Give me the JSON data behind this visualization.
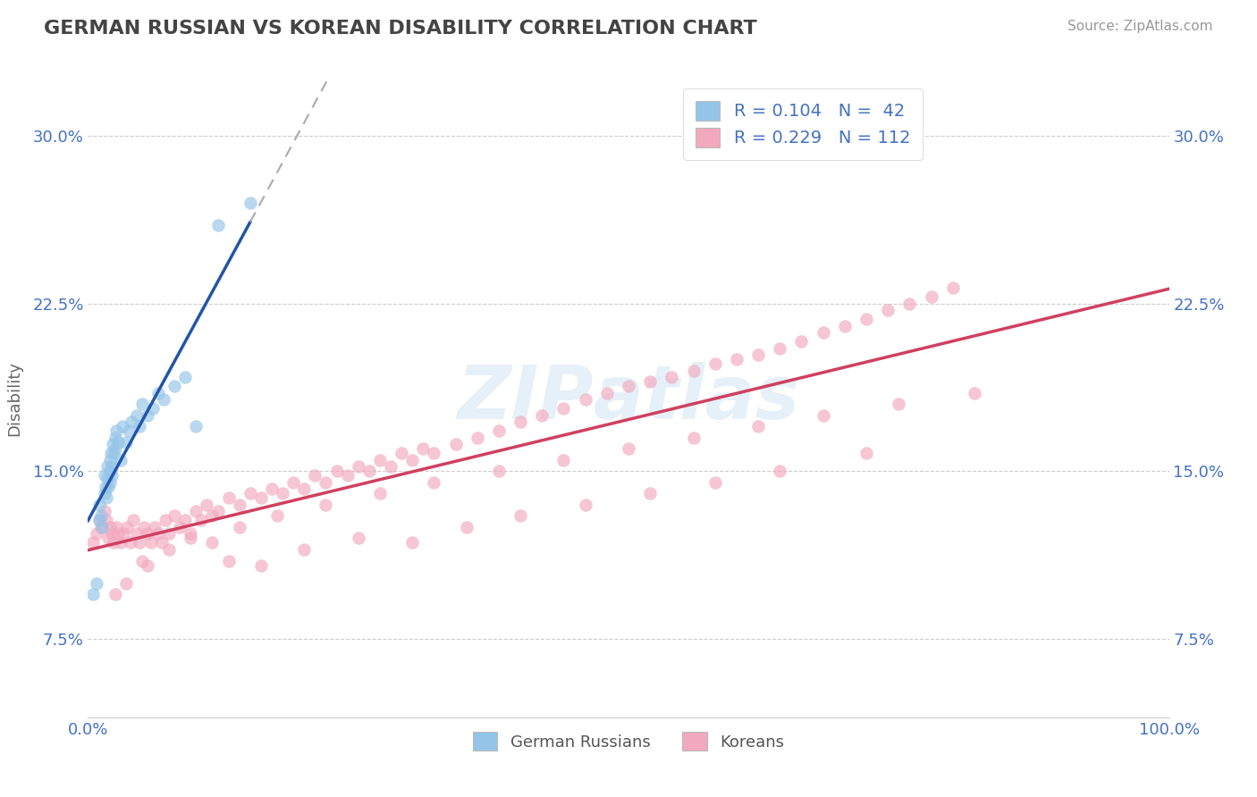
{
  "title": "GERMAN RUSSIAN VS KOREAN DISABILITY CORRELATION CHART",
  "source": "Source: ZipAtlas.com",
  "ylabel": "Disability",
  "xlim": [
    0.0,
    1.0
  ],
  "ylim": [
    0.04,
    0.325
  ],
  "yticks": [
    0.075,
    0.15,
    0.225,
    0.3
  ],
  "ytick_labels": [
    "7.5%",
    "15.0%",
    "22.5%",
    "30.0%"
  ],
  "xtick_labels": [
    "0.0%",
    "100.0%"
  ],
  "xticks": [
    0.0,
    1.0
  ],
  "legend_r1": "R = 0.104",
  "legend_n1": "N =  42",
  "legend_r2": "R = 0.229",
  "legend_n2": "N = 112",
  "legend_label1": "German Russians",
  "legend_label2": "Koreans",
  "blue_color": "#94C4E8",
  "pink_color": "#F2A8BE",
  "blue_line_color": "#2255AA",
  "pink_line_color": "#D04060",
  "text_blue": "#4472C4",
  "blue_x": [
    0.005,
    0.008,
    0.01,
    0.01,
    0.012,
    0.013,
    0.015,
    0.015,
    0.016,
    0.017,
    0.018,
    0.018,
    0.019,
    0.02,
    0.02,
    0.02,
    0.021,
    0.022,
    0.022,
    0.023,
    0.024,
    0.025,
    0.025,
    0.026,
    0.028,
    0.03,
    0.032,
    0.035,
    0.038,
    0.04,
    0.045,
    0.048,
    0.05,
    0.055,
    0.06,
    0.065,
    0.07,
    0.08,
    0.09,
    0.1,
    0.12,
    0.15
  ],
  "blue_y": [
    0.095,
    0.1,
    0.135,
    0.128,
    0.13,
    0.125,
    0.14,
    0.148,
    0.143,
    0.138,
    0.152,
    0.147,
    0.143,
    0.155,
    0.15,
    0.145,
    0.158,
    0.152,
    0.148,
    0.162,
    0.158,
    0.165,
    0.16,
    0.168,
    0.163,
    0.155,
    0.17,
    0.163,
    0.168,
    0.172,
    0.175,
    0.17,
    0.18,
    0.175,
    0.178,
    0.185,
    0.182,
    0.188,
    0.192,
    0.17,
    0.26,
    0.27
  ],
  "pink_x": [
    0.005,
    0.008,
    0.01,
    0.012,
    0.015,
    0.017,
    0.019,
    0.02,
    0.022,
    0.024,
    0.026,
    0.028,
    0.03,
    0.033,
    0.036,
    0.039,
    0.042,
    0.045,
    0.048,
    0.052,
    0.055,
    0.058,
    0.062,
    0.065,
    0.068,
    0.072,
    0.075,
    0.08,
    0.085,
    0.09,
    0.095,
    0.1,
    0.105,
    0.11,
    0.115,
    0.12,
    0.13,
    0.14,
    0.15,
    0.16,
    0.17,
    0.18,
    0.19,
    0.2,
    0.21,
    0.22,
    0.23,
    0.24,
    0.25,
    0.26,
    0.27,
    0.28,
    0.29,
    0.3,
    0.31,
    0.32,
    0.34,
    0.36,
    0.38,
    0.4,
    0.42,
    0.44,
    0.46,
    0.48,
    0.5,
    0.52,
    0.54,
    0.56,
    0.58,
    0.6,
    0.62,
    0.64,
    0.66,
    0.68,
    0.7,
    0.72,
    0.74,
    0.76,
    0.78,
    0.8,
    0.13,
    0.16,
    0.2,
    0.25,
    0.3,
    0.35,
    0.4,
    0.46,
    0.52,
    0.58,
    0.64,
    0.72,
    0.05,
    0.075,
    0.095,
    0.115,
    0.14,
    0.175,
    0.22,
    0.27,
    0.32,
    0.38,
    0.44,
    0.5,
    0.56,
    0.62,
    0.68,
    0.75,
    0.82,
    0.025,
    0.035,
    0.055
  ],
  "pink_y": [
    0.118,
    0.122,
    0.128,
    0.125,
    0.132,
    0.128,
    0.12,
    0.125,
    0.122,
    0.118,
    0.125,
    0.122,
    0.118,
    0.122,
    0.125,
    0.118,
    0.128,
    0.122,
    0.118,
    0.125,
    0.122,
    0.118,
    0.125,
    0.122,
    0.118,
    0.128,
    0.122,
    0.13,
    0.125,
    0.128,
    0.122,
    0.132,
    0.128,
    0.135,
    0.13,
    0.132,
    0.138,
    0.135,
    0.14,
    0.138,
    0.142,
    0.14,
    0.145,
    0.142,
    0.148,
    0.145,
    0.15,
    0.148,
    0.152,
    0.15,
    0.155,
    0.152,
    0.158,
    0.155,
    0.16,
    0.158,
    0.162,
    0.165,
    0.168,
    0.172,
    0.175,
    0.178,
    0.182,
    0.185,
    0.188,
    0.19,
    0.192,
    0.195,
    0.198,
    0.2,
    0.202,
    0.205,
    0.208,
    0.212,
    0.215,
    0.218,
    0.222,
    0.225,
    0.228,
    0.232,
    0.11,
    0.108,
    0.115,
    0.12,
    0.118,
    0.125,
    0.13,
    0.135,
    0.14,
    0.145,
    0.15,
    0.158,
    0.11,
    0.115,
    0.12,
    0.118,
    0.125,
    0.13,
    0.135,
    0.14,
    0.145,
    0.15,
    0.155,
    0.16,
    0.165,
    0.17,
    0.175,
    0.18,
    0.185,
    0.095,
    0.1,
    0.108
  ]
}
